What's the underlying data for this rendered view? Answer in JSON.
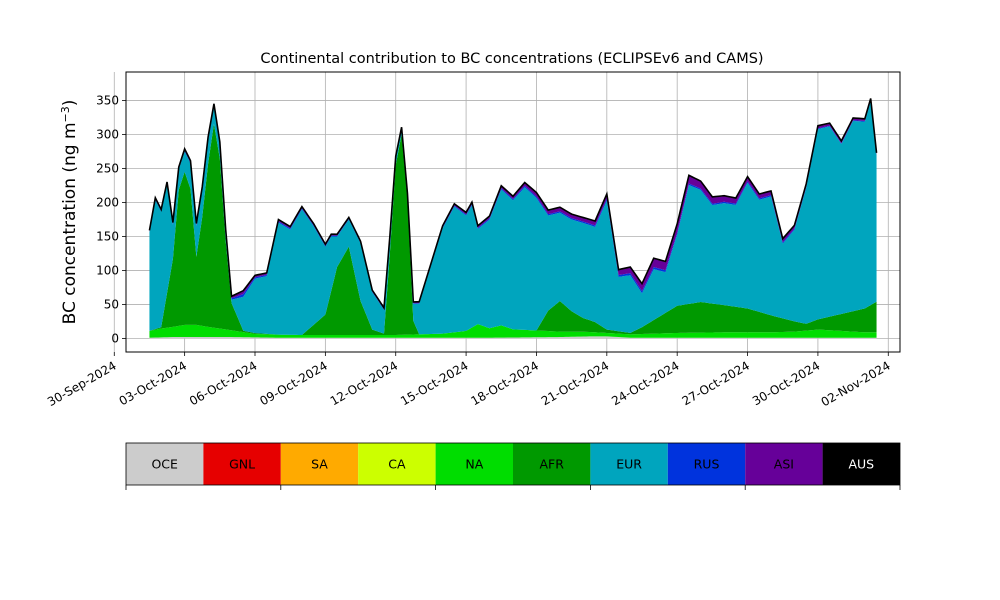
{
  "chart_data": {
    "type": "area",
    "stacked": true,
    "title": "Continental contribution to BC concentrations (ECLIPSEv6 and CAMS)",
    "ylabel_text": "BC concentration (ng m",
    "ylabel_sup": "−3",
    "ylabel_close": ")",
    "xlabel": "",
    "ylim": [
      -20,
      392
    ],
    "yticks": [
      0,
      50,
      100,
      150,
      200,
      250,
      300,
      350
    ],
    "xlim": [
      "2024-09-30T12:00",
      "2024-11-02T12:00"
    ],
    "xticks": [
      {
        "date": "2024-09-30",
        "label": "30-Sep-2024"
      },
      {
        "date": "2024-10-03",
        "label": "03-Oct-2024"
      },
      {
        "date": "2024-10-06",
        "label": "06-Oct-2024"
      },
      {
        "date": "2024-10-09",
        "label": "09-Oct-2024"
      },
      {
        "date": "2024-10-12",
        "label": "12-Oct-2024"
      },
      {
        "date": "2024-10-15",
        "label": "15-Oct-2024"
      },
      {
        "date": "2024-10-18",
        "label": "18-Oct-2024"
      },
      {
        "date": "2024-10-21",
        "label": "21-Oct-2024"
      },
      {
        "date": "2024-10-24",
        "label": "24-Oct-2024"
      },
      {
        "date": "2024-10-27",
        "label": "27-Oct-2024"
      },
      {
        "date": "2024-10-30",
        "label": "30-Oct-2024"
      },
      {
        "date": "2024-11-02",
        "label": "02-Nov-2024"
      }
    ],
    "grid": true,
    "legend_position": "bottom",
    "series": [
      {
        "name": "OCE",
        "color": "#cccccc",
        "points": [
          [
            "2024-10-01T12:00",
            1
          ],
          [
            "2024-10-02T12:00",
            2
          ],
          [
            "2024-10-03T12:00",
            2
          ],
          [
            "2024-10-05T00:00",
            2
          ],
          [
            "2024-10-07T00:00",
            1
          ],
          [
            "2024-10-10T00:00",
            1
          ],
          [
            "2024-10-13T00:00",
            1
          ],
          [
            "2024-10-16T00:00",
            1
          ],
          [
            "2024-10-19T00:00",
            2
          ],
          [
            "2024-10-20T06:00",
            3
          ],
          [
            "2024-10-21T00:00",
            3
          ],
          [
            "2024-10-22T00:00",
            1
          ],
          [
            "2024-10-25T00:00",
            1
          ],
          [
            "2024-10-28T00:00",
            1
          ],
          [
            "2024-10-31T00:00",
            1
          ],
          [
            "2024-11-01T12:00",
            1
          ]
        ]
      },
      {
        "name": "GNL",
        "color": "#e60000",
        "points": [
          [
            "2024-10-01T12:00",
            0
          ],
          [
            "2024-11-01T12:00",
            0
          ]
        ]
      },
      {
        "name": "SA",
        "color": "#ffaa00",
        "points": [
          [
            "2024-10-01T12:00",
            0
          ],
          [
            "2024-11-01T12:00",
            0
          ]
        ]
      },
      {
        "name": "CA",
        "color": "#ccff00",
        "points": [
          [
            "2024-10-01T12:00",
            0
          ],
          [
            "2024-11-01T12:00",
            0
          ]
        ]
      },
      {
        "name": "NA",
        "color": "#00dd00",
        "points": [
          [
            "2024-10-01T12:00",
            10
          ],
          [
            "2024-10-02T00:00",
            13
          ],
          [
            "2024-10-02T12:00",
            15
          ],
          [
            "2024-10-03T00:00",
            18
          ],
          [
            "2024-10-03T12:00",
            18
          ],
          [
            "2024-10-04T00:00",
            15
          ],
          [
            "2024-10-05T00:00",
            10
          ],
          [
            "2024-10-06T00:00",
            5
          ],
          [
            "2024-10-08T00:00",
            4
          ],
          [
            "2024-10-10T00:00",
            4
          ],
          [
            "2024-10-12T00:00",
            4
          ],
          [
            "2024-10-13T00:00",
            5
          ],
          [
            "2024-10-14T00:00",
            6
          ],
          [
            "2024-10-15T00:00",
            10
          ],
          [
            "2024-10-15T12:00",
            20
          ],
          [
            "2024-10-16T00:00",
            14
          ],
          [
            "2024-10-16T12:00",
            18
          ],
          [
            "2024-10-17T00:00",
            12
          ],
          [
            "2024-10-18T00:00",
            10
          ],
          [
            "2024-10-19T00:00",
            8
          ],
          [
            "2024-10-20T00:00",
            7
          ],
          [
            "2024-10-21T00:00",
            5
          ],
          [
            "2024-10-22T00:00",
            5
          ],
          [
            "2024-10-23T00:00",
            6
          ],
          [
            "2024-10-24T00:00",
            7
          ],
          [
            "2024-10-26T00:00",
            8
          ],
          [
            "2024-10-28T00:00",
            8
          ],
          [
            "2024-10-29T00:00",
            9
          ],
          [
            "2024-10-30T00:00",
            12
          ],
          [
            "2024-10-31T00:00",
            10
          ],
          [
            "2024-11-01T00:00",
            8
          ],
          [
            "2024-11-01T12:00",
            8
          ]
        ]
      },
      {
        "name": "AFR",
        "color": "#009900",
        "points": [
          [
            "2024-10-01T12:00",
            0
          ],
          [
            "2024-10-02T00:00",
            2
          ],
          [
            "2024-10-02T12:00",
            100
          ],
          [
            "2024-10-02T18:00",
            200
          ],
          [
            "2024-10-03T00:00",
            225
          ],
          [
            "2024-10-03T06:00",
            200
          ],
          [
            "2024-10-03T12:00",
            100
          ],
          [
            "2024-10-03T18:00",
            160
          ],
          [
            "2024-10-04T00:00",
            240
          ],
          [
            "2024-10-04T06:00",
            300
          ],
          [
            "2024-10-04T12:00",
            250
          ],
          [
            "2024-10-04T18:00",
            130
          ],
          [
            "2024-10-05T00:00",
            40
          ],
          [
            "2024-10-05T12:00",
            2
          ],
          [
            "2024-10-07T00:00",
            0
          ],
          [
            "2024-10-08T00:00",
            0
          ],
          [
            "2024-10-09T00:00",
            30
          ],
          [
            "2024-10-09T12:00",
            100
          ],
          [
            "2024-10-10T00:00",
            130
          ],
          [
            "2024-10-10T12:00",
            50
          ],
          [
            "2024-10-11T00:00",
            8
          ],
          [
            "2024-10-11T12:00",
            2
          ],
          [
            "2024-10-11T18:00",
            120
          ],
          [
            "2024-10-12T00:00",
            250
          ],
          [
            "2024-10-12T06:00",
            295
          ],
          [
            "2024-10-12T12:00",
            200
          ],
          [
            "2024-10-12T18:00",
            20
          ],
          [
            "2024-10-13T00:00",
            0
          ],
          [
            "2024-10-18T00:00",
            0
          ],
          [
            "2024-10-18T12:00",
            30
          ],
          [
            "2024-10-19T00:00",
            45
          ],
          [
            "2024-10-19T12:00",
            30
          ],
          [
            "2024-10-20T00:00",
            20
          ],
          [
            "2024-10-20T12:00",
            15
          ],
          [
            "2024-10-21T00:00",
            5
          ],
          [
            "2024-10-22T00:00",
            2
          ],
          [
            "2024-10-22T12:00",
            10
          ],
          [
            "2024-10-23T00:00",
            20
          ],
          [
            "2024-10-23T12:00",
            30
          ],
          [
            "2024-10-24T00:00",
            40
          ],
          [
            "2024-10-25T00:00",
            45
          ],
          [
            "2024-10-26T00:00",
            40
          ],
          [
            "2024-10-27T00:00",
            35
          ],
          [
            "2024-10-28T00:00",
            25
          ],
          [
            "2024-10-29T00:00",
            15
          ],
          [
            "2024-10-29T12:00",
            10
          ],
          [
            "2024-10-30T00:00",
            15
          ],
          [
            "2024-10-31T00:00",
            25
          ],
          [
            "2024-11-01T00:00",
            35
          ],
          [
            "2024-11-01T12:00",
            45
          ]
        ]
      },
      {
        "name": "EUR",
        "color": "#00a5be",
        "points": [
          [
            "2024-10-01T12:00",
            145
          ],
          [
            "2024-10-01T18:00",
            190
          ],
          [
            "2024-10-02T00:00",
            170
          ],
          [
            "2024-10-02T06:00",
            160
          ],
          [
            "2024-10-02T12:00",
            50
          ],
          [
            "2024-10-02T18:00",
            30
          ],
          [
            "2024-10-03T00:00",
            30
          ],
          [
            "2024-10-03T12:00",
            45
          ],
          [
            "2024-10-04T00:00",
            35
          ],
          [
            "2024-10-04T06:00",
            25
          ],
          [
            "2024-10-04T12:00",
            20
          ],
          [
            "2024-10-05T00:00",
            5
          ],
          [
            "2024-10-05T12:00",
            50
          ],
          [
            "2024-10-06T00:00",
            80
          ],
          [
            "2024-10-06T12:00",
            85
          ],
          [
            "2024-10-07T00:00",
            165
          ],
          [
            "2024-10-07T12:00",
            155
          ],
          [
            "2024-10-08T00:00",
            185
          ],
          [
            "2024-10-08T12:00",
            145
          ],
          [
            "2024-10-09T00:00",
            100
          ],
          [
            "2024-10-09T06:00",
            80
          ],
          [
            "2024-10-09T12:00",
            45
          ],
          [
            "2024-10-10T00:00",
            40
          ],
          [
            "2024-10-10T12:00",
            85
          ],
          [
            "2024-10-11T00:00",
            55
          ],
          [
            "2024-10-11T12:00",
            35
          ],
          [
            "2024-10-12T00:00",
            10
          ],
          [
            "2024-10-12T12:00",
            5
          ],
          [
            "2024-10-13T00:00",
            45
          ],
          [
            "2024-10-13T12:00",
            100
          ],
          [
            "2024-10-14T00:00",
            155
          ],
          [
            "2024-10-14T12:00",
            185
          ],
          [
            "2024-10-15T00:00",
            170
          ],
          [
            "2024-10-15T06:00",
            180
          ],
          [
            "2024-10-15T12:00",
            140
          ],
          [
            "2024-10-16T00:00",
            160
          ],
          [
            "2024-10-16T12:00",
            200
          ],
          [
            "2024-10-17T00:00",
            190
          ],
          [
            "2024-10-17T12:00",
            210
          ],
          [
            "2024-10-18T00:00",
            195
          ],
          [
            "2024-10-18T12:00",
            140
          ],
          [
            "2024-10-19T00:00",
            130
          ],
          [
            "2024-10-19T12:00",
            135
          ],
          [
            "2024-10-20T00:00",
            140
          ],
          [
            "2024-10-20T12:00",
            140
          ],
          [
            "2024-10-21T00:00",
            190
          ],
          [
            "2024-10-21T12:00",
            80
          ],
          [
            "2024-10-22T00:00",
            85
          ],
          [
            "2024-10-22T12:00",
            50
          ],
          [
            "2024-10-23T00:00",
            75
          ],
          [
            "2024-10-23T12:00",
            60
          ],
          [
            "2024-10-24T00:00",
            105
          ],
          [
            "2024-10-24T12:00",
            175
          ],
          [
            "2024-10-25T00:00",
            165
          ],
          [
            "2024-10-25T12:00",
            145
          ],
          [
            "2024-10-26T00:00",
            150
          ],
          [
            "2024-10-26T12:00",
            150
          ],
          [
            "2024-10-27T00:00",
            185
          ],
          [
            "2024-10-27T12:00",
            165
          ],
          [
            "2024-10-28T00:00",
            175
          ],
          [
            "2024-10-28T12:00",
            110
          ],
          [
            "2024-10-29T00:00",
            135
          ],
          [
            "2024-10-29T12:00",
            200
          ],
          [
            "2024-10-30T00:00",
            280
          ],
          [
            "2024-10-30T12:00",
            280
          ],
          [
            "2024-10-31T00:00",
            250
          ],
          [
            "2024-10-31T12:00",
            280
          ],
          [
            "2024-11-01T00:00",
            275
          ],
          [
            "2024-11-01T06:00",
            300
          ],
          [
            "2024-11-01T12:00",
            215
          ]
        ]
      },
      {
        "name": "RUS",
        "color": "#0033dd",
        "points": [
          [
            "2024-10-01T12:00",
            1
          ],
          [
            "2024-10-05T00:00",
            2
          ],
          [
            "2024-10-05T12:00",
            4
          ],
          [
            "2024-10-06T00:00",
            2
          ],
          [
            "2024-10-10T00:00",
            1
          ],
          [
            "2024-10-13T00:00",
            1
          ],
          [
            "2024-10-18T00:00",
            2
          ],
          [
            "2024-10-20T00:00",
            2
          ],
          [
            "2024-10-22T00:00",
            3
          ],
          [
            "2024-10-23T00:00",
            3
          ],
          [
            "2024-10-25T00:00",
            2
          ],
          [
            "2024-10-28T00:00",
            2
          ],
          [
            "2024-10-30T00:00",
            1
          ],
          [
            "2024-11-01T12:00",
            1
          ]
        ]
      },
      {
        "name": "ASI",
        "color": "#660099",
        "points": [
          [
            "2024-10-01T12:00",
            1
          ],
          [
            "2024-10-05T00:00",
            2
          ],
          [
            "2024-10-05T12:00",
            4
          ],
          [
            "2024-10-06T00:00",
            2
          ],
          [
            "2024-10-10T00:00",
            1
          ],
          [
            "2024-10-13T00:00",
            1
          ],
          [
            "2024-10-17T00:00",
            3
          ],
          [
            "2024-10-18T00:00",
            5
          ],
          [
            "2024-10-20T00:00",
            5
          ],
          [
            "2024-10-21T00:00",
            6
          ],
          [
            "2024-10-22T00:00",
            8
          ],
          [
            "2024-10-22T12:00",
            10
          ],
          [
            "2024-10-23T00:00",
            12
          ],
          [
            "2024-10-24T00:00",
            12
          ],
          [
            "2024-10-25T00:00",
            10
          ],
          [
            "2024-10-26T00:00",
            8
          ],
          [
            "2024-10-27T00:00",
            6
          ],
          [
            "2024-10-28T00:00",
            5
          ],
          [
            "2024-10-29T00:00",
            4
          ],
          [
            "2024-10-30T00:00",
            3
          ],
          [
            "2024-11-01T12:00",
            2
          ]
        ]
      },
      {
        "name": "AUS",
        "color": "#000000",
        "points": [
          [
            "2024-10-01T12:00",
            1
          ],
          [
            "2024-11-01T12:00",
            1
          ]
        ]
      }
    ]
  }
}
